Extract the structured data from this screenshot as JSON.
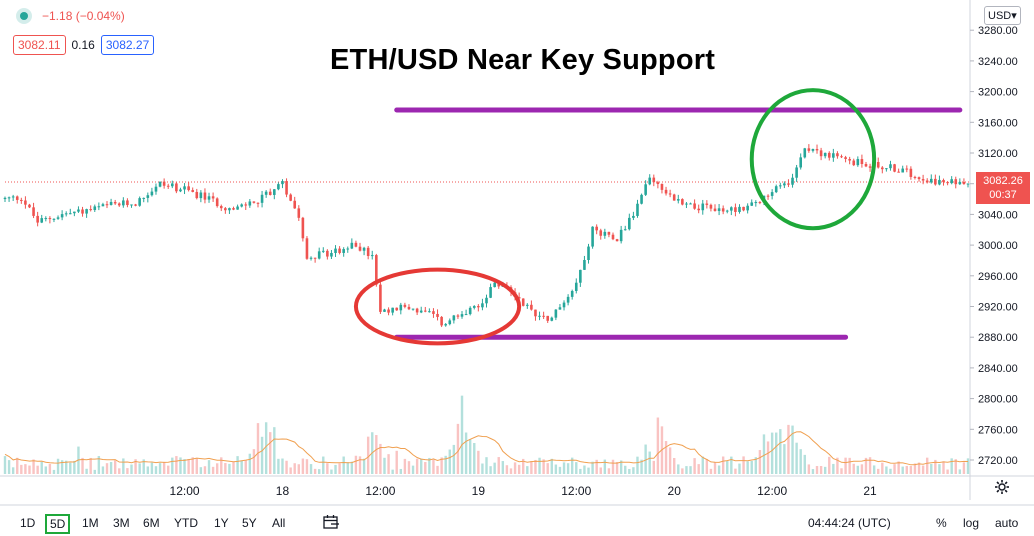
{
  "header": {
    "change": "−1.18 (−0.04%)",
    "bid": "3082.11",
    "spread": "0.16",
    "ask": "3082.27",
    "currency": "USD",
    "title": "ETH/USD Near Key Support"
  },
  "price_label": {
    "price": "3082.26",
    "countdown": "00:37"
  },
  "bottom": {
    "timeframes": [
      "1D",
      "5D",
      "1M",
      "3M",
      "6M",
      "YTD",
      "1Y",
      "5Y",
      "All"
    ],
    "active_timeframe": "5D",
    "clock": "04:44:24 (UTC)",
    "percent": "%",
    "log": "log",
    "auto": "auto"
  },
  "icons": {
    "live_dot": "live-dot-icon",
    "calendar": "calendar-range-icon",
    "settings": "gear-icon"
  },
  "colors": {
    "up": "#26a69a",
    "down": "#ef5350",
    "resistance_line": "#9c27b0",
    "support_zone": "#e53935",
    "resistance_zone": "#1ea83a",
    "volume_ma": "#f0a050"
  },
  "chart_data": {
    "type": "candlestick",
    "y_axis": {
      "ticks": [
        2720,
        2760,
        2800,
        2840,
        2880,
        2920,
        2960,
        3000,
        3040,
        3080,
        3120,
        3160,
        3200,
        3240,
        3280
      ],
      "tick_labels": [
        "2720.00",
        "2760.00",
        "2800.00",
        "2840.00",
        "2880.00",
        "2920.00",
        "2960.00",
        "3000.00",
        "3040.00",
        "3080.00",
        "3120.00",
        "3160.00",
        "3200.00",
        "3240.00",
        "3280.00"
      ]
    },
    "x_axis": {
      "tick_labels": [
        "12:00",
        "18",
        "12:00",
        "19",
        "12:00",
        "20",
        "12:00",
        "21"
      ],
      "time_ticks": [
        12,
        24,
        36,
        48,
        60,
        72,
        84,
        96
      ]
    },
    "time_range": [
      -10,
      108
    ],
    "current_price": 3082.26,
    "series_path": [
      [
        -10,
        3060
      ],
      [
        -8,
        3062
      ],
      [
        -6,
        3030
      ],
      [
        -3,
        3040
      ],
      [
        0,
        3045
      ],
      [
        3,
        3052
      ],
      [
        6,
        3055
      ],
      [
        9,
        3080
      ],
      [
        12,
        3072
      ],
      [
        15,
        3060
      ],
      [
        18,
        3045
      ],
      [
        21,
        3060
      ],
      [
        24,
        3080
      ],
      [
        26,
        3040
      ],
      [
        27,
        2985
      ],
      [
        30,
        2990
      ],
      [
        33,
        3000
      ],
      [
        35,
        2985
      ],
      [
        36,
        2910
      ],
      [
        39,
        2920
      ],
      [
        42,
        2910
      ],
      [
        44,
        2895
      ],
      [
        45,
        2910
      ],
      [
        48,
        2920
      ],
      [
        50,
        2950
      ],
      [
        52,
        2940
      ],
      [
        55,
        2910
      ],
      [
        57,
        2905
      ],
      [
        60,
        2950
      ],
      [
        62,
        3020
      ],
      [
        65,
        3010
      ],
      [
        67,
        3040
      ],
      [
        69,
        3090
      ],
      [
        72,
        3060
      ],
      [
        75,
        3050
      ],
      [
        78,
        3045
      ],
      [
        81,
        3050
      ],
      [
        84,
        3070
      ],
      [
        86,
        3080
      ],
      [
        88,
        3130
      ],
      [
        90,
        3120
      ],
      [
        93,
        3110
      ],
      [
        96,
        3105
      ],
      [
        99,
        3100
      ],
      [
        102,
        3090
      ],
      [
        105,
        3080
      ],
      [
        108,
        3085
      ]
    ],
    "path_time_unit": "hours after 00:00 on the 17th",
    "resistance_line": {
      "price": 3176,
      "t_start": 38,
      "t_end": 107
    },
    "support_line": {
      "price": 2880,
      "t_start": 38,
      "t_end": 93
    },
    "annotations": [
      {
        "label": "support-ellipse",
        "t_center": 43,
        "price_center": 2920,
        "t_radius": 10,
        "price_radius": 48
      },
      {
        "label": "resistance-ellipse",
        "t_center": 89,
        "price_center": 3112,
        "t_radius": 7.5,
        "price_radius": 90
      }
    ],
    "volume": {
      "note": "relative volume bars with moving average overlay",
      "spikes_at_hours": [
        22,
        35,
        46,
        70,
        84,
        86
      ]
    }
  }
}
